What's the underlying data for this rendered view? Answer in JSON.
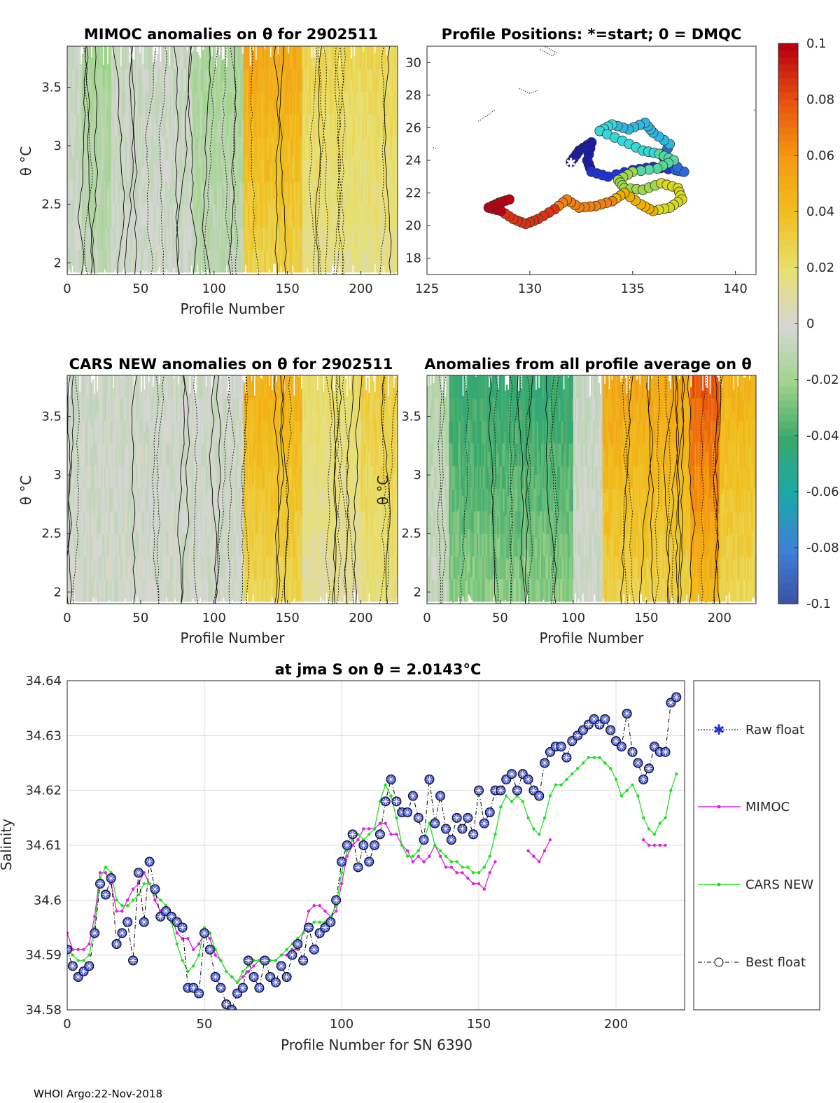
{
  "footer": "WHOI Argo:22-Nov-2018",
  "colorbar": {
    "ticks": [
      "0.1",
      "0.08",
      "0.06",
      "0.04",
      "0.02",
      "0",
      "-0.02",
      "-0.04",
      "-0.06",
      "-0.08",
      "-0.1"
    ],
    "colors": [
      "#3a4fa0",
      "#3f7fd6",
      "#1aa8a8",
      "#3aa86b",
      "#9fd48a",
      "#d6d6d6",
      "#e8e070",
      "#f0c020",
      "#f59a12",
      "#e8540f",
      "#b8000f"
    ]
  },
  "chart_data": [
    {
      "id": "mimoc",
      "type": "heatmap",
      "title": "MIMOC anomalies on θ  for 2902511",
      "xlabel": "Profile Number",
      "ylabel": "θ °C",
      "xlim": [
        0,
        225
      ],
      "ylim": [
        1.9,
        3.85
      ],
      "xticks": [
        "0",
        "50",
        "100",
        "150",
        "200"
      ],
      "yticks": [
        "3.5",
        "3",
        "2.5",
        "2"
      ],
      "anomaly_segments": [
        {
          "from": 0,
          "to": 120,
          "level": "-0.005"
        },
        {
          "from": 10,
          "to": 30,
          "level": "-0.015"
        },
        {
          "from": 85,
          "to": 120,
          "level": "-0.015"
        },
        {
          "from": 120,
          "to": 160,
          "level": "0.05"
        },
        {
          "from": 160,
          "to": 225,
          "level": "0.025"
        }
      ]
    },
    {
      "id": "positions",
      "type": "scatter",
      "title": "Profile Positions: *=start; 0 = DMQC",
      "xlim": [
        125,
        141
      ],
      "ylim": [
        17,
        31
      ],
      "xticks": [
        "125",
        "130",
        "135",
        "140"
      ],
      "yticks": [
        "30",
        "28",
        "26",
        "24",
        "22",
        "20",
        "18"
      ],
      "start": [
        132.0,
        23.9
      ],
      "track": [
        [
          132.0,
          23.9
        ],
        [
          132.4,
          24.6
        ],
        [
          133.0,
          25.1
        ],
        [
          132.8,
          24.0
        ],
        [
          133.0,
          23.3
        ],
        [
          133.8,
          23.0
        ],
        [
          135.0,
          23.4
        ],
        [
          136.0,
          23.6
        ],
        [
          137.1,
          23.4
        ],
        [
          137.5,
          23.3
        ],
        [
          136.5,
          24.2
        ],
        [
          136.8,
          25.0
        ],
        [
          136.0,
          25.7
        ],
        [
          135.6,
          26.3
        ],
        [
          134.8,
          25.9
        ],
        [
          134.0,
          26.2
        ],
        [
          133.4,
          25.8
        ],
        [
          134.5,
          25.2
        ],
        [
          135.5,
          24.6
        ],
        [
          136.3,
          24.4
        ],
        [
          137.0,
          24.0
        ],
        [
          136.2,
          23.5
        ],
        [
          135.0,
          23.3
        ],
        [
          134.3,
          22.8
        ],
        [
          134.6,
          22.3
        ],
        [
          135.5,
          22.2
        ],
        [
          136.4,
          22.6
        ],
        [
          137.2,
          22.3
        ],
        [
          137.4,
          21.6
        ],
        [
          136.8,
          21.1
        ],
        [
          136.0,
          20.9
        ],
        [
          135.4,
          21.3
        ],
        [
          134.6,
          22.0
        ],
        [
          134.0,
          21.5
        ],
        [
          133.2,
          21.2
        ],
        [
          132.4,
          21.1
        ],
        [
          131.8,
          21.6
        ],
        [
          131.2,
          21.0
        ],
        [
          130.4,
          20.4
        ],
        [
          129.8,
          20.1
        ],
        [
          129.2,
          20.4
        ],
        [
          128.6,
          20.9
        ],
        [
          128.0,
          21.1
        ],
        [
          128.5,
          21.4
        ],
        [
          129.0,
          21.6
        ]
      ],
      "coast": [
        [
          [
            130.5,
            30.8
          ],
          [
            131.1,
            30.4
          ],
          [
            131.3,
            30.6
          ],
          [
            130.7,
            31.0
          ]
        ],
        [
          [
            129.5,
            28.4
          ],
          [
            130.0,
            28.1
          ],
          [
            130.4,
            28.3
          ]
        ],
        [
          [
            127.5,
            26.4
          ],
          [
            128.0,
            26.8
          ],
          [
            128.3,
            27.1
          ]
        ],
        [
          [
            125.3,
            24.8
          ],
          [
            125.5,
            24.7
          ]
        ],
        [
          [
            140.9,
            27.1
          ],
          [
            141.0,
            27.0
          ]
        ]
      ]
    },
    {
      "id": "cars",
      "type": "heatmap",
      "title": "CARS NEW anomalies on θ for 2902511",
      "xlabel": "Profile Number",
      "ylabel": "θ °C",
      "xlim": [
        0,
        225
      ],
      "ylim": [
        1.9,
        3.85
      ],
      "xticks": [
        "0",
        "50",
        "100",
        "150",
        "200"
      ],
      "yticks": [
        "3.5",
        "3",
        "2.5",
        "2"
      ],
      "anomaly_segments": [
        {
          "from": 0,
          "to": 120,
          "level": "-0.003"
        },
        {
          "from": 120,
          "to": 160,
          "level": "0.045"
        },
        {
          "from": 160,
          "to": 200,
          "level": "0.02"
        },
        {
          "from": 200,
          "to": 225,
          "level": "0.03"
        }
      ]
    },
    {
      "id": "allavg",
      "type": "heatmap",
      "title": "Anomalies from all profile average on θ",
      "xlabel": "Profile Number",
      "ylabel": "θ °C",
      "xlim": [
        0,
        225
      ],
      "ylim": [
        1.9,
        3.85
      ],
      "xticks": [
        "0",
        "50",
        "100",
        "150",
        "200"
      ],
      "yticks": [
        "3.5",
        "3",
        "2.5",
        "2"
      ],
      "anomaly_segments": [
        {
          "from": 0,
          "to": 15,
          "level": "-0.01"
        },
        {
          "from": 15,
          "to": 100,
          "level": "-0.04"
        },
        {
          "from": 100,
          "to": 120,
          "level": "-0.005"
        },
        {
          "from": 120,
          "to": 180,
          "level": "0.05"
        },
        {
          "from": 180,
          "to": 200,
          "level": "0.075"
        },
        {
          "from": 200,
          "to": 225,
          "level": "0.045"
        }
      ]
    },
    {
      "id": "salinity",
      "type": "line",
      "title": "at jma S on θ = 2.0143°C",
      "xlabel": "Profile Number for SN 6390",
      "ylabel": "Salinity",
      "xlim": [
        0,
        225
      ],
      "ylim": [
        34.58,
        34.64
      ],
      "xticks": [
        "0",
        "50",
        "100",
        "150",
        "200"
      ],
      "yticks": [
        "34.64",
        "34.63",
        "34.62",
        "34.61",
        "34.6",
        "34.59",
        "34.58"
      ],
      "legend": [
        "Raw float",
        "MIMOC",
        "CARS NEW",
        "Best float"
      ],
      "series": [
        {
          "name": "Best float",
          "x": [
            0,
            2,
            4,
            6,
            8,
            10,
            12,
            14,
            16,
            18,
            20,
            22,
            24,
            26,
            28,
            30,
            32,
            34,
            36,
            38,
            40,
            42,
            44,
            46,
            48,
            50,
            52,
            54,
            56,
            58,
            60,
            62,
            64,
            66,
            68,
            70,
            72,
            74,
            76,
            78,
            80,
            82,
            84,
            86,
            88,
            90,
            92,
            94,
            96,
            98,
            100,
            102,
            104,
            106,
            108,
            110,
            112,
            114,
            116,
            118,
            120,
            122,
            124,
            126,
            128,
            130,
            132,
            134,
            136,
            138,
            140,
            142,
            144,
            146,
            148,
            150,
            152,
            154,
            156,
            158,
            160,
            162,
            164,
            166,
            168,
            170,
            172,
            174,
            176,
            178,
            180,
            182,
            184,
            186,
            188,
            190,
            192,
            194,
            196,
            198,
            200,
            202,
            204,
            206,
            208,
            210,
            212,
            214,
            216,
            218,
            220,
            222
          ],
          "y": [
            34.591,
            34.588,
            34.586,
            34.587,
            34.588,
            34.594,
            34.603,
            34.601,
            34.604,
            34.592,
            34.594,
            34.596,
            34.589,
            34.605,
            34.596,
            34.607,
            34.602,
            34.597,
            34.598,
            34.597,
            34.596,
            34.595,
            34.584,
            34.584,
            34.583,
            34.594,
            34.591,
            34.586,
            34.584,
            34.581,
            34.58,
            34.583,
            34.584,
            34.589,
            34.586,
            34.584,
            34.589,
            34.586,
            34.585,
            34.588,
            34.586,
            34.59,
            34.592,
            34.589,
            34.595,
            34.591,
            34.594,
            34.595,
            34.596,
            34.6,
            34.607,
            34.61,
            34.612,
            34.606,
            34.61,
            34.607,
            34.61,
            34.612,
            34.618,
            34.622,
            34.618,
            34.616,
            34.616,
            34.619,
            34.615,
            34.611,
            34.622,
            34.614,
            34.619,
            34.613,
            34.611,
            34.615,
            34.613,
            34.615,
            34.612,
            34.62,
            34.614,
            34.616,
            34.62,
            34.62,
            34.622,
            34.623,
            34.62,
            34.623,
            34.622,
            34.62,
            34.619,
            34.625,
            34.627,
            34.628,
            34.628,
            34.626,
            34.629,
            34.63,
            34.631,
            34.632,
            34.633,
            34.632,
            34.633,
            34.631,
            34.629,
            34.628,
            34.634,
            34.627,
            34.625,
            34.622,
            34.624,
            34.628,
            34.627,
            34.627,
            34.636,
            34.637
          ]
        },
        {
          "name": "MIMOC",
          "x": [
            0,
            2,
            4,
            6,
            8,
            10,
            12,
            14,
            16,
            18,
            20,
            22,
            24,
            26,
            28,
            30,
            32,
            34,
            36,
            38,
            40,
            42,
            44,
            46,
            48,
            50,
            52,
            54,
            56,
            58,
            60,
            62,
            64,
            66,
            68,
            70,
            72,
            74,
            76,
            78,
            80,
            82,
            84,
            86,
            88,
            90,
            92,
            94,
            96,
            98,
            100,
            102,
            104,
            106,
            108,
            110,
            112,
            114,
            116,
            118,
            120,
            122,
            124,
            126,
            128,
            130,
            132,
            134,
            136,
            138,
            140,
            142,
            144,
            146,
            148,
            150,
            152,
            154,
            156,
            null,
            168,
            170,
            172,
            174,
            176,
            null,
            210,
            212,
            214,
            216,
            218
          ],
          "y": [
            34.594,
            34.591,
            34.591,
            34.591,
            34.592,
            34.597,
            34.605,
            34.605,
            34.603,
            34.598,
            34.598,
            34.6,
            34.602,
            34.603,
            34.605,
            34.603,
            34.6,
            34.598,
            34.598,
            34.597,
            34.594,
            34.593,
            34.593,
            34.591,
            34.592,
            34.594,
            34.593,
            34.59,
            34.589,
            34.587,
            34.586,
            34.585,
            34.586,
            34.587,
            34.588,
            34.589,
            34.589,
            34.589,
            34.589,
            34.59,
            34.59,
            34.591,
            34.591,
            34.594,
            34.598,
            34.599,
            34.599,
            34.598,
            34.597,
            34.598,
            34.603,
            34.608,
            34.61,
            34.611,
            34.613,
            34.613,
            34.613,
            34.614,
            34.614,
            34.612,
            34.612,
            34.61,
            34.609,
            34.607,
            34.608,
            34.607,
            34.608,
            34.61,
            34.608,
            34.606,
            34.606,
            34.605,
            34.605,
            34.604,
            34.603,
            34.603,
            34.602,
            34.605,
            34.607,
            null,
            34.609,
            34.608,
            34.607,
            34.609,
            34.611,
            null,
            34.611,
            34.61,
            34.61,
            34.61,
            34.61
          ]
        },
        {
          "name": "CARS NEW",
          "x": [
            0,
            2,
            4,
            6,
            8,
            10,
            12,
            14,
            16,
            18,
            20,
            22,
            24,
            26,
            28,
            30,
            32,
            34,
            36,
            38,
            40,
            42,
            44,
            46,
            48,
            50,
            52,
            54,
            56,
            58,
            60,
            62,
            64,
            66,
            68,
            70,
            72,
            74,
            76,
            78,
            80,
            82,
            84,
            86,
            88,
            90,
            92,
            94,
            96,
            98,
            100,
            102,
            104,
            106,
            108,
            110,
            112,
            114,
            116,
            118,
            120,
            122,
            124,
            126,
            128,
            130,
            132,
            134,
            136,
            138,
            140,
            142,
            144,
            146,
            148,
            150,
            152,
            154,
            156,
            158,
            160,
            162,
            164,
            166,
            168,
            170,
            172,
            174,
            176,
            178,
            180,
            182,
            184,
            186,
            188,
            190,
            192,
            194,
            196,
            198,
            200,
            202,
            204,
            206,
            208,
            210,
            212,
            214,
            216,
            218,
            220,
            222
          ],
          "y": [
            34.591,
            34.59,
            34.589,
            34.589,
            34.59,
            34.595,
            34.604,
            34.606,
            34.605,
            34.6,
            34.599,
            34.599,
            34.6,
            34.601,
            34.603,
            34.603,
            34.601,
            34.6,
            34.599,
            34.596,
            34.592,
            34.589,
            34.587,
            34.588,
            34.59,
            34.595,
            34.594,
            34.591,
            34.589,
            34.587,
            34.586,
            34.585,
            34.587,
            34.588,
            34.589,
            34.589,
            34.589,
            34.589,
            34.589,
            34.59,
            34.591,
            34.592,
            34.593,
            34.594,
            34.595,
            34.596,
            34.596,
            34.596,
            34.597,
            34.599,
            34.605,
            34.609,
            34.611,
            34.612,
            34.611,
            34.612,
            34.613,
            34.618,
            34.621,
            34.619,
            34.615,
            34.61,
            34.608,
            34.608,
            34.609,
            34.611,
            34.614,
            34.61,
            34.609,
            34.608,
            34.607,
            34.607,
            34.606,
            34.606,
            34.605,
            34.605,
            34.606,
            34.608,
            34.612,
            34.617,
            34.619,
            34.618,
            34.619,
            34.618,
            34.615,
            34.613,
            34.612,
            34.615,
            34.619,
            34.621,
            34.621,
            34.622,
            34.623,
            34.624,
            34.625,
            34.626,
            34.626,
            34.626,
            34.625,
            34.624,
            34.622,
            34.619,
            34.62,
            34.621,
            34.619,
            34.615,
            34.613,
            34.612,
            34.614,
            34.615,
            34.62,
            34.623
          ]
        }
      ]
    }
  ]
}
